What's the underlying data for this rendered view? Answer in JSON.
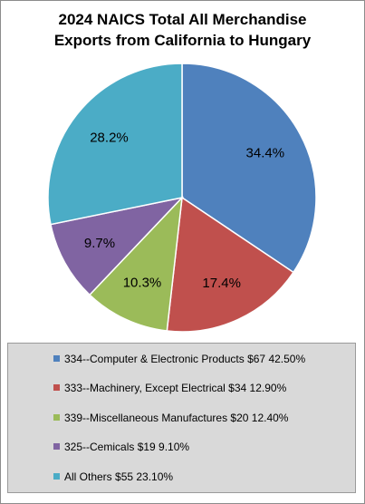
{
  "chart_data": {
    "type": "pie",
    "title_lines": [
      "2024 NAICS Total All Merchandise",
      "Exports from California to Hungary"
    ],
    "slices": [
      {
        "label": "34.4%",
        "value": 34.4,
        "color": "#4f81bd"
      },
      {
        "label": "17.4%",
        "value": 17.4,
        "color": "#c0504d"
      },
      {
        "label": "10.3%",
        "value": 10.3,
        "color": "#9bbb59"
      },
      {
        "label": "9.7%",
        "value": 9.7,
        "color": "#8064a2"
      },
      {
        "label": "28.2%",
        "value": 28.2,
        "color": "#4bacc6"
      }
    ],
    "legend": [
      {
        "text": "334--Computer & Electronic Products $67  42.50%",
        "color": "#4f81bd"
      },
      {
        "text": "333--Machinery, Except Electrical $34  12.90%",
        "color": "#c0504d"
      },
      {
        "text": "339--Miscellaneous Manufactures $20  12.40%",
        "color": "#9bbb59"
      },
      {
        "text": "325--Cemicals $19  9.10%",
        "color": "#8064a2"
      },
      {
        "text": "All Others $55  23.10%",
        "color": "#4bacc6"
      }
    ],
    "legend_placement": "bottom"
  }
}
